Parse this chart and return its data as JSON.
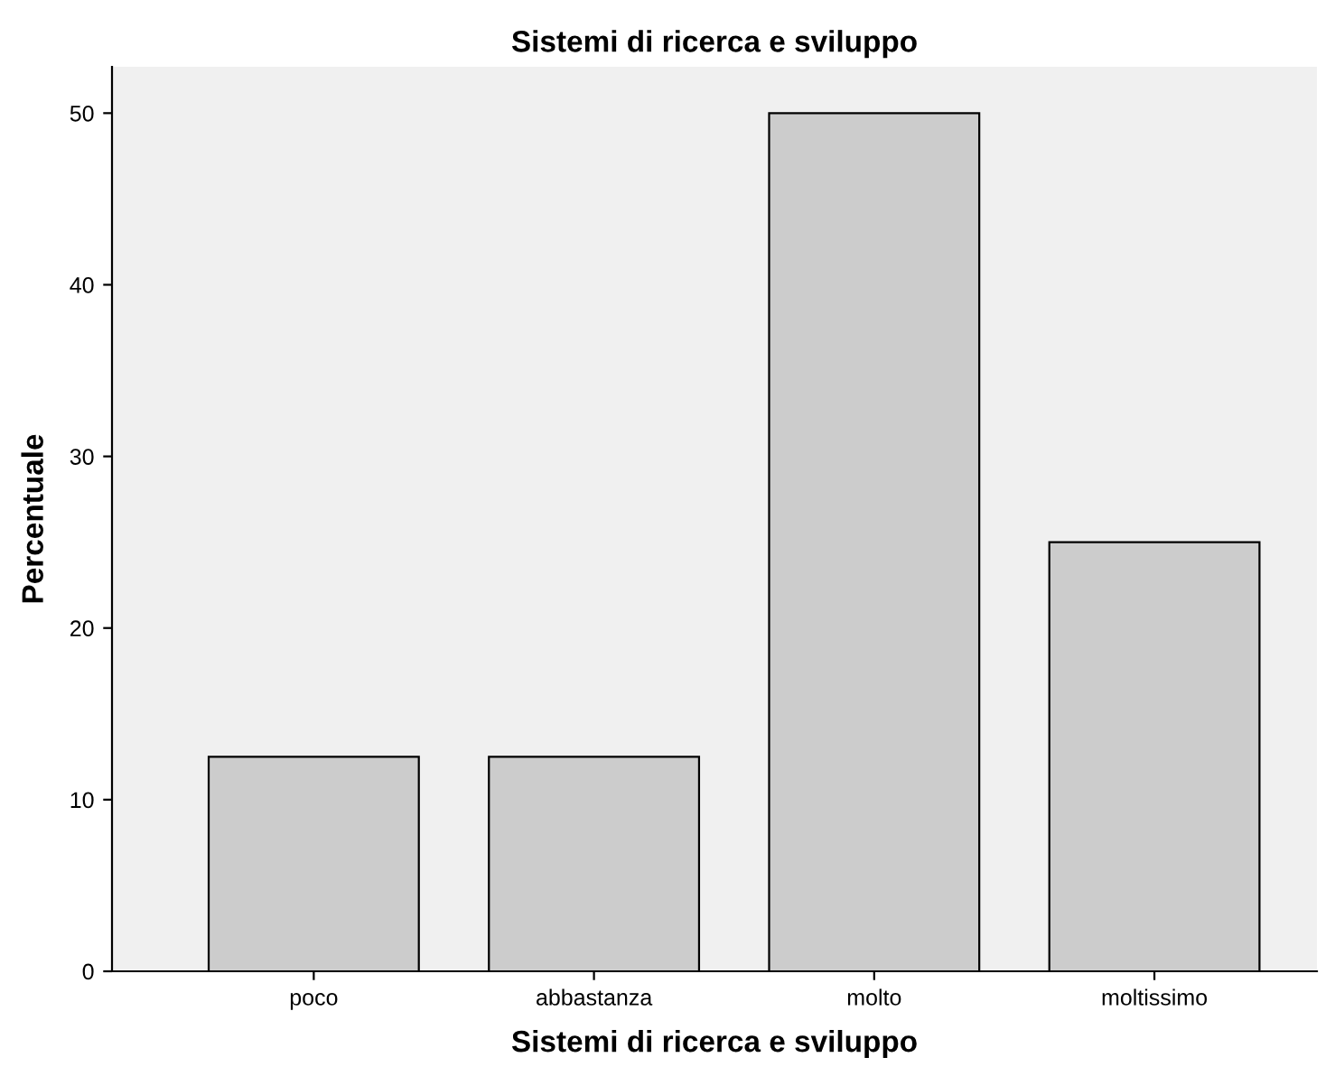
{
  "chart_data": {
    "type": "bar",
    "title": "Sistemi di ricerca e sviluppo",
    "xlabel": "Sistemi di ricerca e sviluppo",
    "ylabel": "Percentuale",
    "categories": [
      "poco",
      "abbastanza",
      "molto",
      "moltissimo"
    ],
    "values": [
      12.5,
      12.5,
      50,
      25
    ],
    "color": "#cccccc",
    "ylim": [
      0,
      52.7
    ],
    "yticks": [
      0,
      10,
      20,
      30,
      40,
      50
    ],
    "grid": false,
    "legend": false
  }
}
